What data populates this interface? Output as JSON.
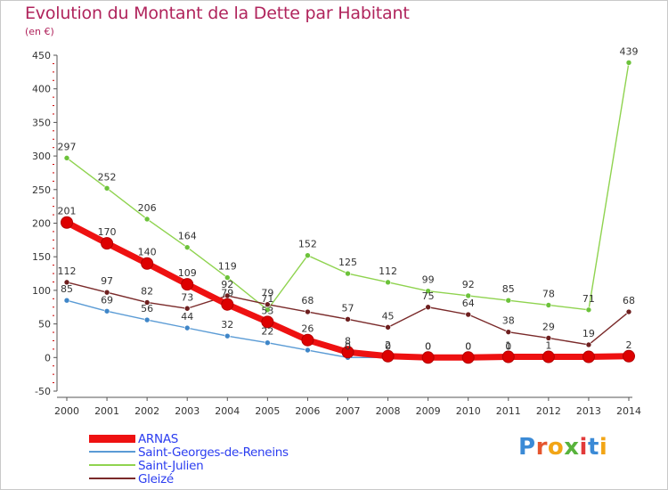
{
  "title": "Evolution du Montant de la Dette par Habitant",
  "subtitle": "(en €)",
  "colors": {
    "title": "#b0245c",
    "legend_text": "#2b3df0",
    "axis": "#555555",
    "grid_tick": "#cc0000"
  },
  "logo": {
    "text": "Proxiti",
    "letter_colors": [
      "#3b8ad6",
      "#e5552e",
      "#f2a516",
      "#58b33c",
      "#e23a3a",
      "#3b8ad6",
      "#f2a516"
    ]
  },
  "chart_data": {
    "type": "line",
    "title": "Evolution du Montant de la Dette par Habitant",
    "subtitle": "(en €)",
    "xlabel": "",
    "ylabel": "",
    "ylim": [
      -50,
      450
    ],
    "yticks": [
      -50,
      0,
      50,
      100,
      150,
      200,
      250,
      300,
      350,
      400,
      450
    ],
    "grid": false,
    "legend_position": "bottom-left",
    "x": [
      "2000",
      "2001",
      "2002",
      "2003",
      "2004",
      "2005",
      "2006",
      "2007",
      "2008",
      "2009",
      "2010",
      "2011",
      "2012",
      "2013",
      "2014"
    ],
    "series": [
      {
        "name": "Saint-Julien",
        "color": "#8fd34f",
        "marker": "#6cc23a",
        "values": [
          297,
          252,
          206,
          164,
          119,
          71,
          152,
          125,
          112,
          99,
          92,
          85,
          78,
          71,
          439
        ],
        "labels": [
          "297",
          "252",
          "206",
          "164",
          "119",
          "71",
          "152",
          "125",
          "112",
          "99",
          "92",
          "85",
          "78",
          "71",
          "439"
        ]
      },
      {
        "name": "Gleizé",
        "color": "#7a2a2a",
        "marker": "#6e1f1f",
        "values": [
          112,
          97,
          82,
          73,
          92,
          79,
          68,
          57,
          45,
          75,
          64,
          38,
          29,
          19,
          68
        ],
        "labels": [
          "112",
          "97",
          "82",
          "73",
          "92",
          "79",
          "68",
          "57",
          "45",
          "75",
          "64",
          "38",
          "29",
          "19",
          "68"
        ]
      },
      {
        "name": "Saint-Georges-de-Reneins",
        "color": "#5a9bd5",
        "marker": "#3f86c8",
        "values": [
          85,
          69,
          56,
          44,
          32,
          22,
          11,
          0,
          0,
          0,
          0,
          0,
          0,
          0,
          0
        ],
        "labels": [
          "85",
          "69",
          "56",
          "44",
          "32",
          "22",
          "",
          "0",
          "0",
          "0",
          "0",
          "0",
          "",
          "",
          ""
        ]
      },
      {
        "name": "ARNAS",
        "color": "#ee1111",
        "marker": "#dd0000",
        "values": [
          201,
          170,
          140,
          109,
          79,
          53,
          26,
          8,
          2,
          0,
          0,
          1,
          1,
          1,
          2
        ],
        "labels": [
          "201",
          "170",
          "140",
          "109",
          "79",
          "53",
          "26",
          "8",
          "2",
          "0",
          "0",
          "1",
          "1",
          "",
          "2"
        ]
      }
    ],
    "legend": [
      {
        "name": "ARNAS",
        "color": "#ee1111",
        "width": 9
      },
      {
        "name": "Saint-Georges-de-Reneins",
        "color": "#5a9bd5",
        "width": 2
      },
      {
        "name": "Saint-Julien",
        "color": "#8fd34f",
        "width": 2
      },
      {
        "name": "Gleizé",
        "color": "#7a2a2a",
        "width": 2
      }
    ]
  }
}
